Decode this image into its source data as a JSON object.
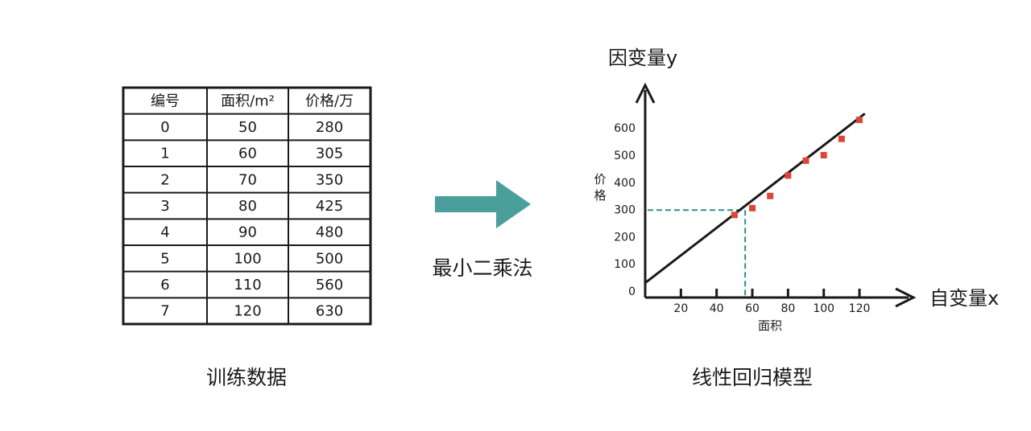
{
  "table": {
    "headers": [
      "编号",
      "面积/m²",
      "价格/万"
    ],
    "rows": [
      [
        "0",
        "50",
        "280"
      ],
      [
        "1",
        "60",
        "305"
      ],
      [
        "2",
        "70",
        "350"
      ],
      [
        "3",
        "80",
        "425"
      ],
      [
        "4",
        "90",
        "480"
      ],
      [
        "5",
        "100",
        "500"
      ],
      [
        "6",
        "110",
        "560"
      ],
      [
        "7",
        "120",
        "630"
      ]
    ],
    "caption": "训练数据"
  },
  "arrow": {
    "label": "最小二乘法",
    "color": "#4a9e9c"
  },
  "chart_data": {
    "type": "scatter",
    "y_title": "因变量y",
    "x_title": "自变量x",
    "ylabel": "价格",
    "xlabel": "面积",
    "caption": "线性回归模型",
    "x_ticks": [
      20,
      40,
      60,
      80,
      100,
      120
    ],
    "y_ticks": [
      0,
      100,
      200,
      300,
      400,
      500,
      600
    ],
    "points": [
      {
        "x": 50,
        "y": 280
      },
      {
        "x": 60,
        "y": 305
      },
      {
        "x": 70,
        "y": 350
      },
      {
        "x": 80,
        "y": 425
      },
      {
        "x": 90,
        "y": 480
      },
      {
        "x": 100,
        "y": 500
      },
      {
        "x": 110,
        "y": 560
      },
      {
        "x": 120,
        "y": 630
      }
    ],
    "fit_line": {
      "x0": 0,
      "y0": 30,
      "x1": 123,
      "y1": 653
    },
    "guide": {
      "x": 56,
      "y": 298
    },
    "point_color": "#d9473a",
    "guide_color": "#2f8f8c"
  }
}
